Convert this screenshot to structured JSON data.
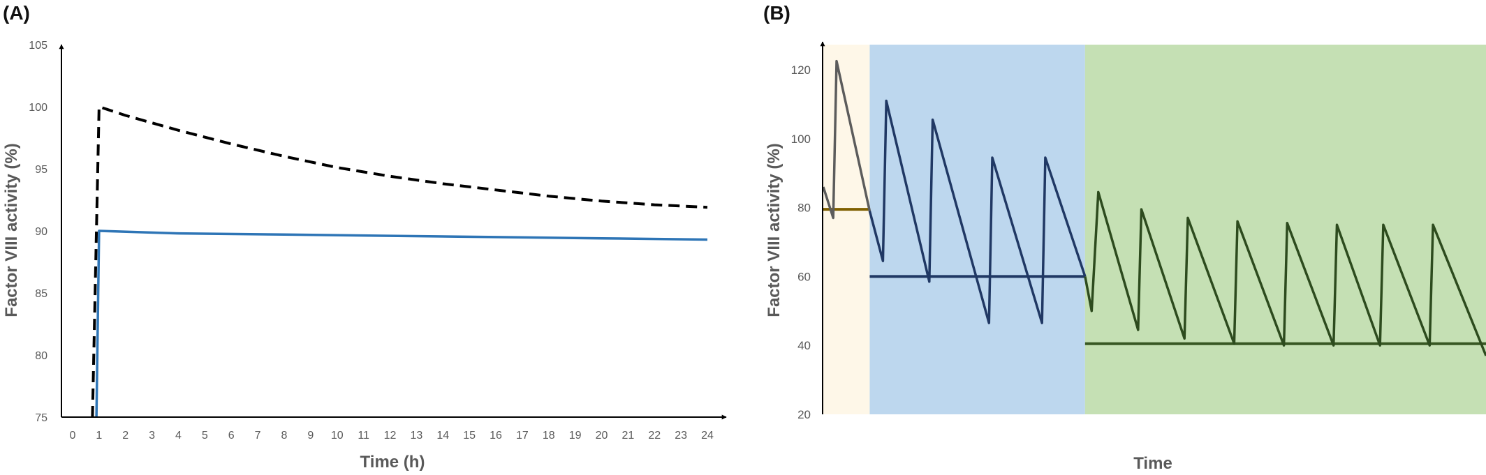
{
  "chart_data": [
    {
      "panel": "(A)",
      "type": "line",
      "title": "",
      "xlabel": "Time (h)",
      "ylabel": "Factor VIII activity (%)",
      "xlim": [
        -0.5,
        24.5
      ],
      "ylim": [
        75,
        105
      ],
      "xticks": [
        "0",
        "1",
        "2",
        "3",
        "4",
        "5",
        "6",
        "7",
        "8",
        "9",
        "10",
        "11",
        "12",
        "13",
        "14",
        "15",
        "16",
        "17",
        "18",
        "19",
        "20",
        "21",
        "22",
        "23",
        "24"
      ],
      "yticks": [
        "75",
        "80",
        "85",
        "90",
        "95",
        "100",
        "105"
      ],
      "grid": false,
      "legend": "none",
      "series": [
        {
          "color": "#000000",
          "style": "dashed",
          "points": [
            [
              0.75,
              75
            ],
            [
              1,
              100
            ],
            [
              2,
              99.3
            ],
            [
              4,
              98.1
            ],
            [
              6,
              97
            ],
            [
              8,
              96
            ],
            [
              10,
              95.1
            ],
            [
              12,
              94.4
            ],
            [
              14,
              93.8
            ],
            [
              16,
              93.3
            ],
            [
              18,
              92.8
            ],
            [
              20,
              92.4
            ],
            [
              22,
              92.1
            ],
            [
              24,
              91.9
            ]
          ]
        },
        {
          "color": "#2E75B6",
          "style": "solid",
          "points": [
            [
              0.9,
              75
            ],
            [
              1,
              90
            ],
            [
              4,
              89.8
            ],
            [
              8,
              89.7
            ],
            [
              12,
              89.6
            ],
            [
              16,
              89.5
            ],
            [
              20,
              89.4
            ],
            [
              24,
              89.3
            ]
          ]
        }
      ]
    },
    {
      "panel": "(B)",
      "type": "line",
      "title": "",
      "xlabel": "Time",
      "ylabel": "Factor VIII activity (%)",
      "xlim": [
        0,
        100
      ],
      "ylim": [
        20,
        130
      ],
      "yticks": [
        "20",
        "40",
        "60",
        "80",
        "100",
        "120"
      ],
      "grid": false,
      "legend": "none",
      "regions": [
        {
          "x": [
            0,
            7
          ],
          "color": "#FEF7E8"
        },
        {
          "x": [
            7,
            39.5
          ],
          "color": "#BDD7EE"
        },
        {
          "x": [
            39.5,
            100
          ],
          "color": "#C5E0B4"
        }
      ],
      "thresholds": [
        {
          "y": 79.5,
          "x": [
            0,
            7
          ],
          "color": "#7F6000"
        },
        {
          "y": 60,
          "x": [
            7,
            39.5
          ],
          "color": "#203864"
        },
        {
          "y": 40.5,
          "x": [
            39.5,
            100
          ],
          "color": "#385723"
        }
      ],
      "series": [
        {
          "color": "#5C5C5C",
          "points": [
            [
              0,
              86
            ],
            [
              1.5,
              77
            ],
            [
              2,
              122.5
            ],
            [
              7,
              79
            ]
          ]
        },
        {
          "color": "#203864",
          "points": [
            [
              7,
              79
            ],
            [
              9,
              64.5
            ],
            [
              9.5,
              111
            ],
            [
              16,
              58.5
            ],
            [
              16.5,
              105.5
            ],
            [
              25,
              46.5
            ],
            [
              25.5,
              94.5
            ],
            [
              33,
              46.5
            ],
            [
              33.5,
              94.5
            ],
            [
              39.5,
              60
            ]
          ]
        },
        {
          "color": "#2D4B1E",
          "points": [
            [
              39.5,
              60
            ],
            [
              40.5,
              50
            ],
            [
              41.5,
              84.5
            ],
            [
              47.5,
              44.5
            ],
            [
              48,
              79.5
            ],
            [
              54.5,
              42
            ],
            [
              55,
              77
            ],
            [
              62,
              40.5
            ],
            [
              62.5,
              76
            ],
            [
              69.5,
              40
            ],
            [
              70,
              75.5
            ],
            [
              77,
              40
            ],
            [
              77.5,
              75
            ],
            [
              84,
              40
            ],
            [
              84.5,
              75
            ],
            [
              91.5,
              40
            ],
            [
              92,
              75
            ],
            [
              100,
              37
            ]
          ]
        }
      ]
    }
  ]
}
